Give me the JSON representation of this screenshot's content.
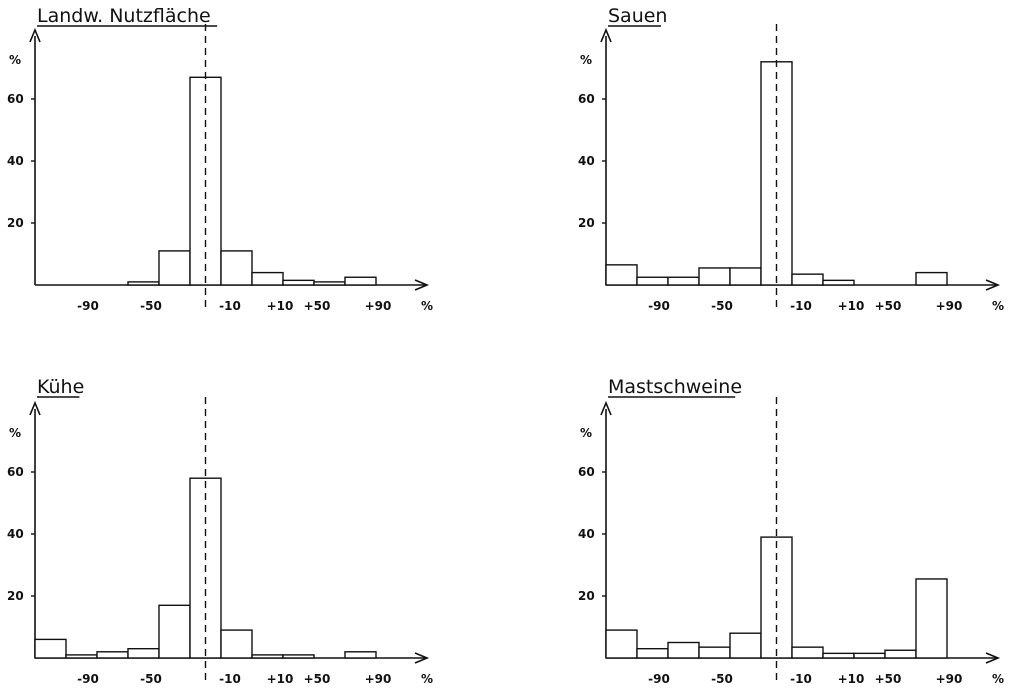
{
  "chart_data": [
    {
      "type": "bar",
      "title": "Landw. Nutzfläche",
      "ylabel": "%",
      "xlabel": "%",
      "yticks": [
        "20",
        "40",
        "60"
      ],
      "xticks": [
        "-90",
        "-50",
        "-10",
        "+10",
        "+50",
        "+90"
      ],
      "ylim": [
        0,
        70
      ],
      "categories": [
        "-110",
        "-90",
        "-70",
        "-50",
        "-30",
        "-10",
        "+10",
        "+30",
        "+50",
        "+70",
        "+90"
      ],
      "values": [
        0,
        0,
        0,
        1,
        11,
        67,
        11,
        4,
        1.5,
        1,
        2.5
      ]
    },
    {
      "type": "bar",
      "title": "Sauen",
      "ylabel": "%",
      "xlabel": "%",
      "yticks": [
        "20",
        "40",
        "60"
      ],
      "xticks": [
        "-90",
        "-50",
        "-10",
        "+10",
        "+50",
        "+90"
      ],
      "ylim": [
        0,
        70
      ],
      "categories": [
        "-110",
        "-90",
        "-70",
        "-50",
        "-30",
        "-10",
        "+10",
        "+30",
        "+50",
        "+70",
        "+90"
      ],
      "values": [
        6.5,
        2.5,
        2.5,
        5.5,
        5.5,
        72,
        3.5,
        1.5,
        0,
        0,
        4
      ]
    },
    {
      "type": "bar",
      "title": "Kühe",
      "ylabel": "%",
      "xlabel": "%",
      "yticks": [
        "20",
        "40",
        "60"
      ],
      "xticks": [
        "-90",
        "-50",
        "-10",
        "+10",
        "+50",
        "+90"
      ],
      "ylim": [
        0,
        70
      ],
      "categories": [
        "-110",
        "-90",
        "-70",
        "-50",
        "-30",
        "-10",
        "+10",
        "+30",
        "+50",
        "+70",
        "+90"
      ],
      "values": [
        6,
        1,
        2,
        3,
        17,
        58,
        9,
        1,
        1,
        0,
        2
      ]
    },
    {
      "type": "bar",
      "title": "Mastschweine",
      "ylabel": "%",
      "xlabel": "%",
      "yticks": [
        "20",
        "40",
        "60"
      ],
      "xticks": [
        "-90",
        "-50",
        "-10",
        "+10",
        "+50",
        "+90"
      ],
      "ylim": [
        0,
        70
      ],
      "categories": [
        "-110",
        "-90",
        "-70",
        "-50",
        "-30",
        "-10",
        "+10",
        "+30",
        "+50",
        "+70",
        "+90"
      ],
      "values": [
        9,
        3,
        5,
        3.5,
        8,
        39,
        3.5,
        1.5,
        1.5,
        2.5,
        25.5
      ]
    }
  ]
}
